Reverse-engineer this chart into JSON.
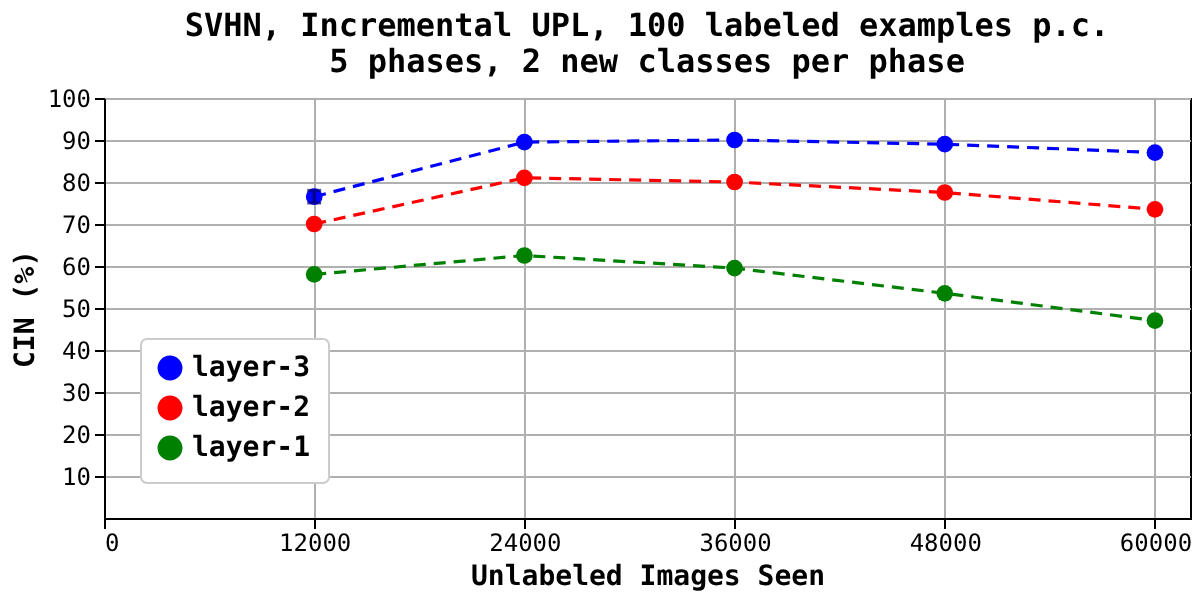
{
  "chart_data": {
    "type": "line",
    "title": "SVHN, Incremental UPL, 100 labeled examples p.c.\n5 phases, 2 new classes per phase",
    "xlabel": "Unlabeled Images Seen",
    "ylabel": "CIN (%)",
    "x": [
      12000,
      24000,
      36000,
      48000,
      60000
    ],
    "series": [
      {
        "name": "layer-3",
        "color": "#0000ff",
        "values": [
          76.5,
          89.5,
          90,
          89,
          87
        ],
        "errors": [
          1.5,
          null,
          null,
          null,
          null
        ]
      },
      {
        "name": "layer-2",
        "color": "#ff0000",
        "values": [
          70,
          81,
          80,
          77.5,
          73.5
        ]
      },
      {
        "name": "layer-1",
        "color": "#008000",
        "values": [
          58,
          62.5,
          59.5,
          53.5,
          47
        ]
      }
    ],
    "xlim": [
      0,
      62000
    ],
    "xticks": [
      0,
      12000,
      24000,
      36000,
      48000,
      60000
    ],
    "ylim": [
      0,
      100
    ],
    "yticks": [
      10,
      20,
      30,
      40,
      50,
      60,
      70,
      80,
      90,
      100
    ],
    "grid": true,
    "legend": "bottom left",
    "marker": "circle",
    "line_style": "dashed"
  }
}
